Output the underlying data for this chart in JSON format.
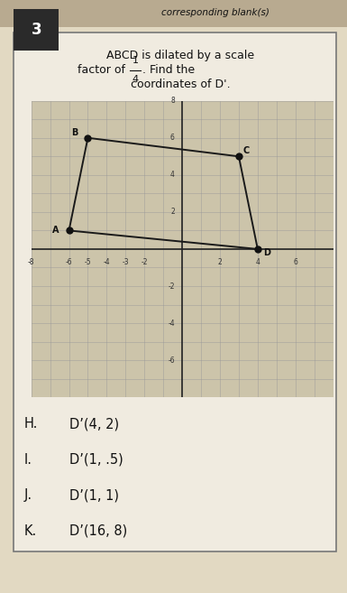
{
  "title_line1": "ABCD is dilated by a scale",
  "title_line2": "factor of ",
  "title_line3": ". Find the",
  "title_line4": "coordinates of D'.",
  "header_text": "corresponding blank(s)",
  "problem_number": "3",
  "graph": {
    "xlim": [
      -8,
      8
    ],
    "ylim": [
      -8,
      8
    ],
    "points": {
      "A": [
        -6,
        1
      ],
      "B": [
        -5,
        6
      ],
      "C": [
        3,
        5
      ],
      "D": [
        4,
        0
      ]
    },
    "polygon_color": "#1a1a1a",
    "point_color": "#111111",
    "point_size": 5,
    "grid_color": "#999999",
    "axis_color": "#222222",
    "bg_color": "#ccc4aa"
  },
  "answer_choices": [
    {
      "letter": "H.",
      "text": "D’(4, 2)"
    },
    {
      "letter": "I.",
      "text": "D’(1, .5)"
    },
    {
      "letter": "J.",
      "text": "D’(1, 1)"
    },
    {
      "letter": "K.",
      "text": "D’(16, 8)"
    }
  ],
  "bg_color": "#e2d9c2",
  "content_bg": "#f0ebe0",
  "header_bg": "#b8aa90",
  "number_bg": "#2a2a2a",
  "text_color": "#111111",
  "font_size_title": 9.0,
  "font_size_answers": 10.5,
  "font_size_header": 7.5,
  "font_size_number": 12
}
